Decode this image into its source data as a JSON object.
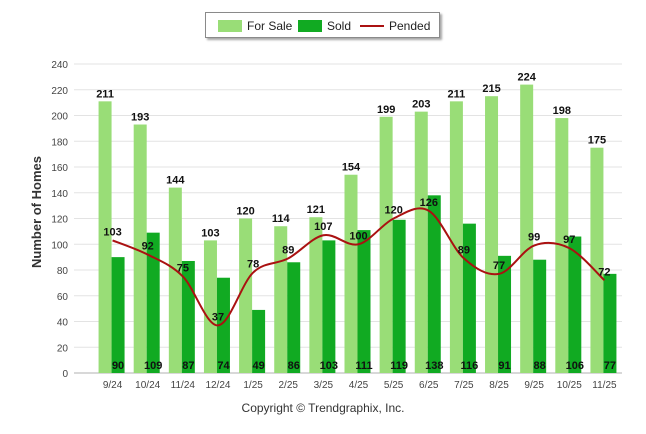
{
  "chart_data": {
    "type": "bar",
    "categories": [
      "9/24",
      "10/24",
      "11/24",
      "12/24",
      "1/25",
      "2/25",
      "3/25",
      "4/25",
      "5/25",
      "6/25",
      "7/25",
      "8/25",
      "9/25",
      "10/25",
      "11/25"
    ],
    "series": [
      {
        "name": "For Sale",
        "type": "bar",
        "color": "#99dd77",
        "values": [
          211,
          193,
          144,
          103,
          120,
          114,
          121,
          154,
          199,
          203,
          211,
          215,
          224,
          198,
          175
        ]
      },
      {
        "name": "Sold",
        "type": "bar",
        "color": "#11aa22",
        "values": [
          90,
          109,
          87,
          74,
          49,
          86,
          103,
          111,
          119,
          138,
          116,
          91,
          88,
          106,
          77
        ]
      },
      {
        "name": "Pended",
        "type": "line",
        "color": "#aa1111",
        "values": [
          103,
          92,
          75,
          37,
          78,
          89,
          107,
          100,
          120,
          126,
          89,
          77,
          99,
          97,
          72
        ]
      }
    ],
    "title": "",
    "xlabel": "",
    "ylabel": "Number of Homes",
    "ylim": [
      0,
      240
    ],
    "yticks": [
      0,
      20,
      40,
      60,
      80,
      100,
      120,
      140,
      160,
      180,
      200,
      220,
      240
    ],
    "grid": true,
    "legend": "top-center"
  },
  "footer": {
    "copyright": "Copyright © Trendgraphix, Inc."
  }
}
